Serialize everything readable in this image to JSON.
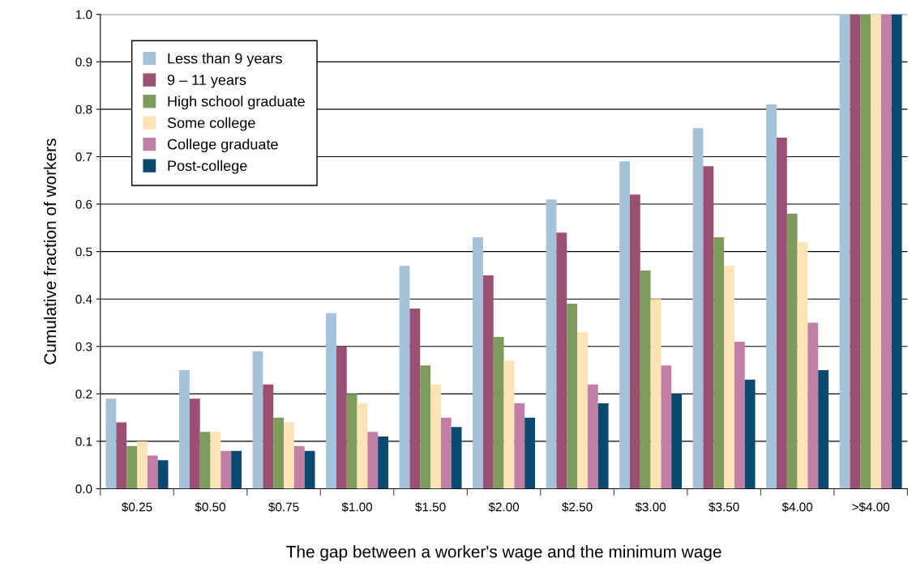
{
  "chart_data": {
    "type": "bar",
    "xlabel": "The gap between a worker's wage and the minimum wage",
    "ylabel": "Cumulative fraction of workers",
    "categories": [
      "$0.25",
      "$0.50",
      "$0.75",
      "$1.00",
      "$1.50",
      "$2.00",
      "$2.50",
      "$3.00",
      "$3.50",
      "$4.00",
      ">$4.00"
    ],
    "series": [
      {
        "name": "Less than 9 years",
        "color": "#a4c2d9",
        "values": [
          0.19,
          0.25,
          0.29,
          0.37,
          0.47,
          0.53,
          0.61,
          0.69,
          0.76,
          0.81,
          1.0
        ]
      },
      {
        "name": "9 – 11 years",
        "color": "#9b4f73",
        "values": [
          0.14,
          0.19,
          0.22,
          0.3,
          0.38,
          0.45,
          0.54,
          0.62,
          0.68,
          0.74,
          1.0
        ]
      },
      {
        "name": "High school graduate",
        "color": "#7d9c5b",
        "values": [
          0.09,
          0.12,
          0.15,
          0.2,
          0.26,
          0.32,
          0.39,
          0.46,
          0.53,
          0.58,
          1.0
        ]
      },
      {
        "name": "Some college",
        "color": "#fbe3b5",
        "values": [
          0.1,
          0.12,
          0.14,
          0.18,
          0.22,
          0.27,
          0.33,
          0.4,
          0.47,
          0.52,
          1.0
        ]
      },
      {
        "name": "College graduate",
        "color": "#c17fa6",
        "values": [
          0.07,
          0.08,
          0.09,
          0.12,
          0.15,
          0.18,
          0.22,
          0.26,
          0.31,
          0.35,
          1.0
        ]
      },
      {
        "name": "Post-college",
        "color": "#0b4a6f",
        "values": [
          0.06,
          0.08,
          0.08,
          0.11,
          0.13,
          0.15,
          0.18,
          0.2,
          0.23,
          0.25,
          1.0
        ]
      }
    ],
    "ylim": [
      0,
      1.0
    ],
    "yticks": [
      {
        "value": 0,
        "label": "0.0"
      },
      0.1,
      0.2,
      0.3,
      0.4,
      0.5,
      0.6,
      0.7,
      0.8,
      0.9,
      {
        "value": 1.0,
        "label": "1.0"
      }
    ],
    "grid": "y",
    "legend": "top left"
  }
}
